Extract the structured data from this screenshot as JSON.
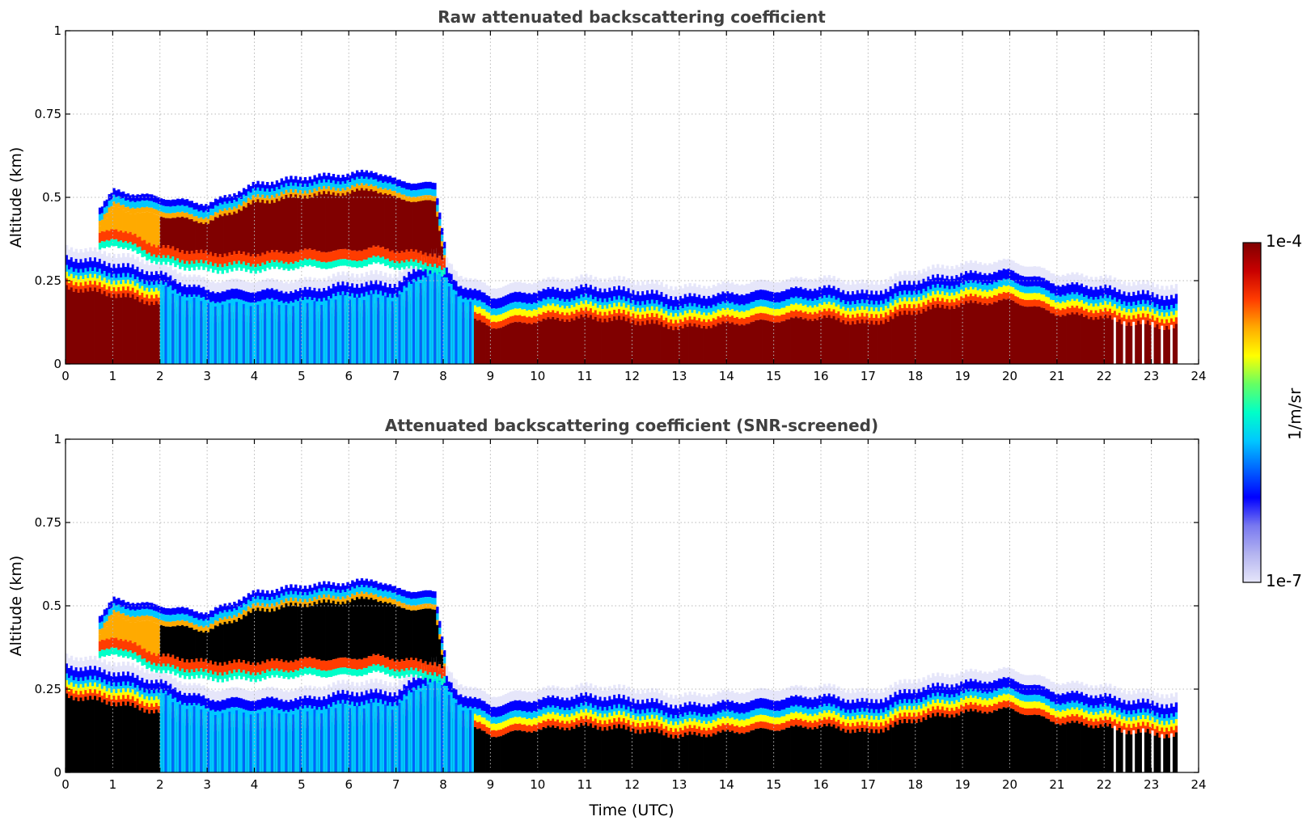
{
  "chart_data": [
    {
      "type": "heatmap",
      "title": "Raw attenuated backscattering coefficient",
      "xlabel": "",
      "ylabel": "Altitude (km)",
      "xlim": [
        0,
        24
      ],
      "ylim": [
        0,
        1
      ],
      "xticks": [
        "0",
        "1",
        "2",
        "3",
        "4",
        "5",
        "6",
        "7",
        "8",
        "9",
        "10",
        "11",
        "12",
        "13",
        "14",
        "15",
        "16",
        "17",
        "18",
        "19",
        "20",
        "21",
        "22",
        "23",
        "24"
      ],
      "yticks": [
        "0",
        "0.25",
        "0.5",
        "0.75",
        "1"
      ],
      "grid": true,
      "screened": false,
      "layers": [
        {
          "name": "surface layer (mixed-layer top)",
          "time": [
            0,
            1,
            2,
            2.5,
            3,
            4,
            5,
            6,
            7,
            7.8,
            8.3,
            9,
            10,
            11,
            12,
            13,
            14,
            15,
            16,
            17,
            18,
            19,
            20,
            21,
            22,
            22.2,
            23.5
          ],
          "top_km": [
            0.3,
            0.28,
            0.25,
            0.22,
            0.2,
            0.2,
            0.2,
            0.22,
            0.22,
            0.3,
            0.22,
            0.18,
            0.2,
            0.21,
            0.2,
            0.18,
            0.19,
            0.2,
            0.21,
            0.19,
            0.23,
            0.25,
            0.26,
            0.22,
            0.21,
            0.2,
            0.18
          ]
        },
        {
          "name": "elevated aerosol layer",
          "time": [
            0.7,
            1,
            2,
            3,
            4,
            5,
            6,
            6.5,
            7,
            7.8,
            8.0
          ],
          "top_km": [
            0.45,
            0.5,
            0.48,
            0.46,
            0.52,
            0.54,
            0.55,
            0.56,
            0.53,
            0.52,
            0.35
          ],
          "bottom_km": [
            0.36,
            0.38,
            0.32,
            0.3,
            0.3,
            0.31,
            0.31,
            0.32,
            0.31,
            0.3,
            0.28
          ]
        }
      ]
    },
    {
      "type": "heatmap",
      "title": "Attenuated backscattering coefficient (SNR-screened)",
      "xlabel": "Time (UTC)",
      "ylabel": "Altitude (km)",
      "xlim": [
        0,
        24
      ],
      "ylim": [
        0,
        1
      ],
      "xticks": [
        "0",
        "1",
        "2",
        "3",
        "4",
        "5",
        "6",
        "7",
        "8",
        "9",
        "10",
        "11",
        "12",
        "13",
        "14",
        "15",
        "16",
        "17",
        "18",
        "19",
        "20",
        "21",
        "22",
        "23",
        "24"
      ],
      "yticks": [
        "0",
        "0.25",
        "0.5",
        "0.75",
        "1"
      ],
      "grid": true,
      "screened": true
    }
  ],
  "colorbar": {
    "label": "1/m/sr",
    "max_label": "1e-4",
    "min_label": "1e-7",
    "scale": "log",
    "min": 1e-07,
    "max": 0.0001,
    "colormap": [
      "#e6e6fa",
      "#b4b4f0",
      "#7878f0",
      "#0000ff",
      "#0064ff",
      "#00c8ff",
      "#00ffc8",
      "#64ff64",
      "#ffff00",
      "#ffaa00",
      "#ff3c00",
      "#c80000",
      "#800000"
    ],
    "saturated_color": "#000000"
  }
}
